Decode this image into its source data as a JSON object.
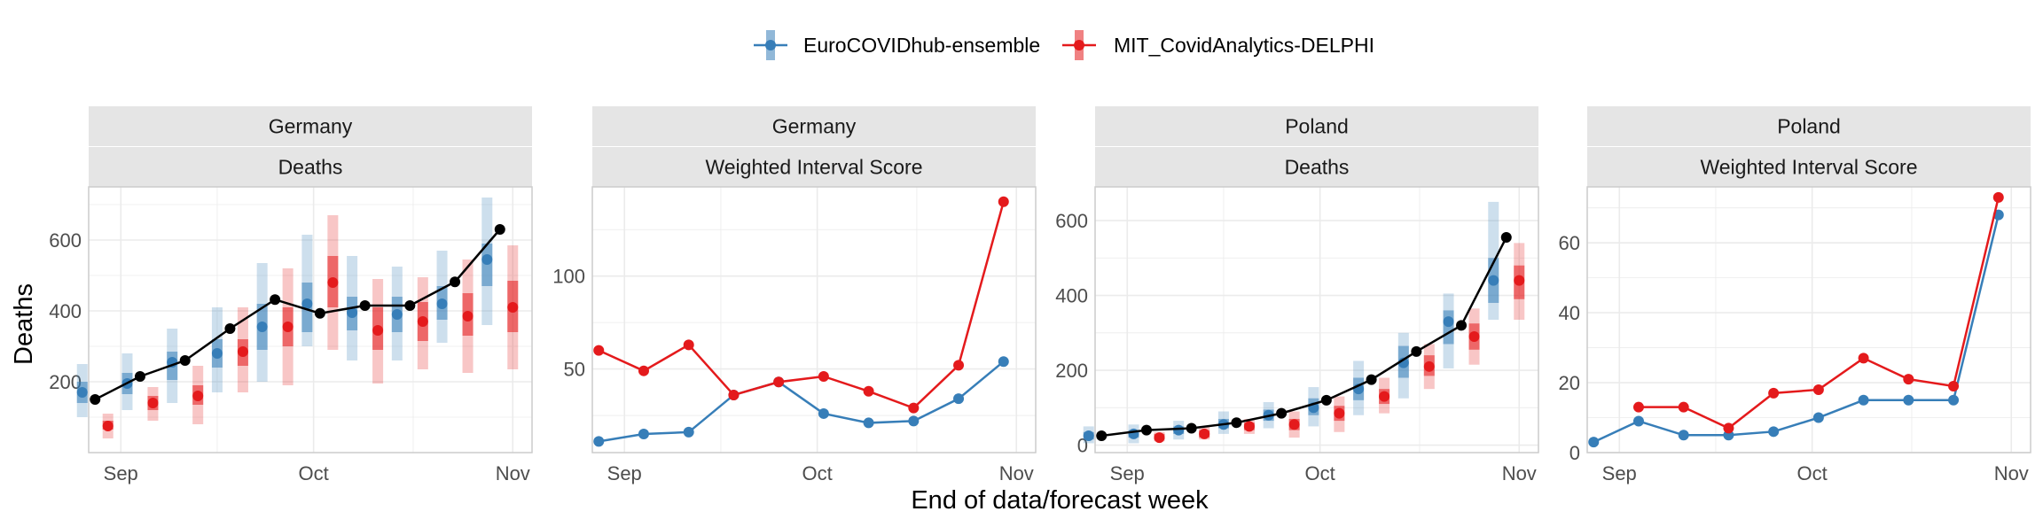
{
  "colors": {
    "ensemble": "#377EB8",
    "delphi": "#E41A1C",
    "observed": "#000000",
    "strip_bg": "#E5E5E5",
    "grid": "#EBEBEB",
    "panel_border": "#CCCCCC"
  },
  "legend": {
    "items": [
      {
        "label": "EuroCOVIDhub-ensemble",
        "color": "#377EB8"
      },
      {
        "label": "MIT_CovidAnalytics-DELPHI",
        "color": "#E41A1C"
      }
    ]
  },
  "xlabel": "End of data/forecast week",
  "ylabel": "Deaths",
  "chart_data": [
    {
      "type": "line",
      "strip": [
        "Germany",
        "Deaths"
      ],
      "x_ticks": [
        "Sep",
        "Oct",
        "Nov"
      ],
      "x_tick_positions": [
        4,
        34,
        65
      ],
      "xlim": [
        -1,
        68
      ],
      "ylim": [
        0,
        750
      ],
      "y_ticks": [
        200,
        400,
        600
      ],
      "x": [
        0,
        7,
        14,
        21,
        28,
        35,
        42,
        49,
        56,
        63
      ],
      "observed": [
        150,
        215,
        260,
        350,
        432,
        393,
        415,
        415,
        482,
        630
      ],
      "series": [
        {
          "name": "EuroCOVIDhub-ensemble",
          "median": [
            170,
            195,
            255,
            280,
            355,
            420,
            395,
            390,
            420,
            545
          ],
          "inner50": [
            [
              140,
              200
            ],
            [
              165,
              225
            ],
            [
              205,
              285
            ],
            [
              240,
              320
            ],
            [
              290,
              420
            ],
            [
              340,
              480
            ],
            [
              345,
              440
            ],
            [
              340,
              440
            ],
            [
              375,
              470
            ],
            [
              470,
              590
            ]
          ],
          "outer90": [
            [
              100,
              250
            ],
            [
              120,
              280
            ],
            [
              140,
              350
            ],
            [
              170,
              410
            ],
            [
              200,
              535
            ],
            [
              300,
              615
            ],
            [
              260,
              555
            ],
            [
              260,
              525
            ],
            [
              310,
              570
            ],
            [
              360,
              720
            ]
          ]
        },
        {
          "name": "MIT_CovidAnalytics-DELPHI",
          "median": [
            75,
            140,
            160,
            285,
            355,
            480,
            345,
            370,
            385,
            410
          ],
          "inner50": [
            [
              65,
              90
            ],
            [
              120,
              160
            ],
            [
              135,
              190
            ],
            [
              245,
              320
            ],
            [
              300,
              410
            ],
            [
              410,
              555
            ],
            [
              290,
              410
            ],
            [
              315,
              425
            ],
            [
              330,
              450
            ],
            [
              340,
              485
            ]
          ],
          "outer90": [
            [
              40,
              110
            ],
            [
              90,
              185
            ],
            [
              80,
              245
            ],
            [
              170,
              410
            ],
            [
              190,
              520
            ],
            [
              290,
              670
            ],
            [
              195,
              490
            ],
            [
              235,
              495
            ],
            [
              225,
              545
            ],
            [
              235,
              585
            ]
          ]
        }
      ]
    },
    {
      "type": "line",
      "strip": [
        "Germany",
        "Weighted Interval Score"
      ],
      "x_ticks": [
        "Sep",
        "Oct",
        "Nov"
      ],
      "x_tick_positions": [
        4,
        34,
        65
      ],
      "xlim": [
        -1,
        68
      ],
      "ylim": [
        5,
        148
      ],
      "y_ticks": [
        50,
        100
      ],
      "x": [
        0,
        7,
        14,
        21,
        28,
        35,
        42,
        49,
        56,
        63
      ],
      "series": [
        {
          "name": "EuroCOVIDhub-ensemble",
          "values": [
            11,
            15,
            16,
            36,
            43,
            26,
            21,
            22,
            34,
            54
          ]
        },
        {
          "name": "MIT_CovidAnalytics-DELPHI",
          "values": [
            60,
            49,
            63,
            36,
            43,
            46,
            38,
            29,
            52,
            140
          ]
        }
      ]
    },
    {
      "type": "line",
      "strip": [
        "Poland",
        "Deaths"
      ],
      "x_ticks": [
        "Sep",
        "Oct",
        "Nov"
      ],
      "x_tick_positions": [
        4,
        34,
        65
      ],
      "xlim": [
        -1,
        68
      ],
      "ylim": [
        -20,
        690
      ],
      "y_ticks": [
        0,
        200,
        400,
        600
      ],
      "x": [
        0,
        7,
        14,
        21,
        28,
        35,
        42,
        49,
        56,
        63
      ],
      "observed": [
        25,
        40,
        45,
        60,
        85,
        120,
        175,
        250,
        320,
        555
      ],
      "series": [
        {
          "name": "EuroCOVIDhub-ensemble",
          "median": [
            25,
            30,
            40,
            55,
            80,
            100,
            150,
            220,
            330,
            440
          ],
          "inner50": [
            [
              15,
              35
            ],
            [
              20,
              40
            ],
            [
              30,
              50
            ],
            [
              45,
              70
            ],
            [
              65,
              95
            ],
            [
              80,
              125
            ],
            [
              120,
              180
            ],
            [
              180,
              265
            ],
            [
              270,
              360
            ],
            [
              380,
              500
            ]
          ],
          "outer90": [
            [
              5,
              50
            ],
            [
              5,
              55
            ],
            [
              15,
              65
            ],
            [
              30,
              90
            ],
            [
              45,
              115
            ],
            [
              50,
              155
            ],
            [
              80,
              225
            ],
            [
              125,
              300
            ],
            [
              205,
              405
            ],
            [
              335,
              650
            ]
          ]
        },
        {
          "name": "MIT_CovidAnalytics-DELPHI",
          "median": [
            null,
            20,
            30,
            50,
            55,
            85,
            130,
            210,
            290,
            440
          ],
          "inner50": [
            null,
            [
              15,
              30
            ],
            [
              20,
              40
            ],
            [
              40,
              60
            ],
            [
              40,
              70
            ],
            [
              65,
              105
            ],
            [
              110,
              150
            ],
            [
              185,
              240
            ],
            [
              255,
              325
            ],
            [
              390,
              480
            ]
          ],
          "outer90": [
            null,
            [
              10,
              35
            ],
            [
              15,
              50
            ],
            [
              30,
              70
            ],
            [
              20,
              90
            ],
            [
              35,
              130
            ],
            [
              85,
              180
            ],
            [
              150,
              270
            ],
            [
              215,
              365
            ],
            [
              335,
              540
            ]
          ]
        }
      ]
    },
    {
      "type": "line",
      "strip": [
        "Poland",
        "Weighted Interval Score"
      ],
      "x_ticks": [
        "Sep",
        "Oct",
        "Nov"
      ],
      "x_tick_positions": [
        4,
        34,
        65
      ],
      "xlim": [
        -1,
        68
      ],
      "ylim": [
        0,
        76
      ],
      "y_ticks": [
        0,
        20,
        40,
        60
      ],
      "x": [
        0,
        7,
        14,
        21,
        28,
        35,
        42,
        49,
        56,
        63
      ],
      "series": [
        {
          "name": "EuroCOVIDhub-ensemble",
          "values": [
            3,
            9,
            5,
            5,
            6,
            10,
            15,
            15,
            15,
            68
          ]
        },
        {
          "name": "MIT_CovidAnalytics-DELPHI",
          "values": [
            null,
            13,
            13,
            7,
            17,
            18,
            27,
            21,
            19,
            73
          ]
        }
      ]
    }
  ]
}
